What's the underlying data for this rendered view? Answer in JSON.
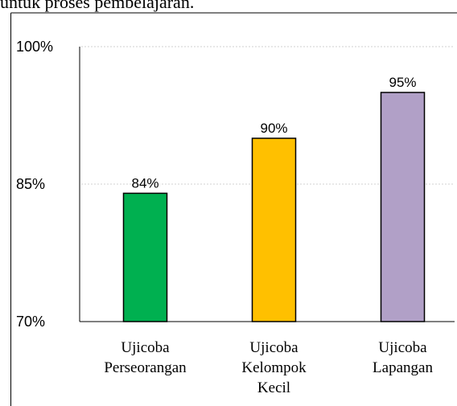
{
  "caption": "untuk proses pembelajaran.",
  "chart_data": {
    "type": "bar",
    "categories": [
      "Ujicoba\nPerseorangan",
      "Ujicoba\nKelompok\nKecil",
      "Ujicoba\nLapangan"
    ],
    "values": [
      84,
      90,
      95
    ],
    "value_labels": [
      "84%",
      "90%",
      "95%"
    ],
    "colors": [
      "#00b050",
      "#ffc000",
      "#b1a0c7"
    ],
    "ylim": [
      70,
      100
    ],
    "yticks": [
      {
        "value": 70,
        "label": "70%"
      },
      {
        "value": 85,
        "label": "85%"
      },
      {
        "value": 100,
        "label": "100%"
      }
    ],
    "grid": true
  }
}
